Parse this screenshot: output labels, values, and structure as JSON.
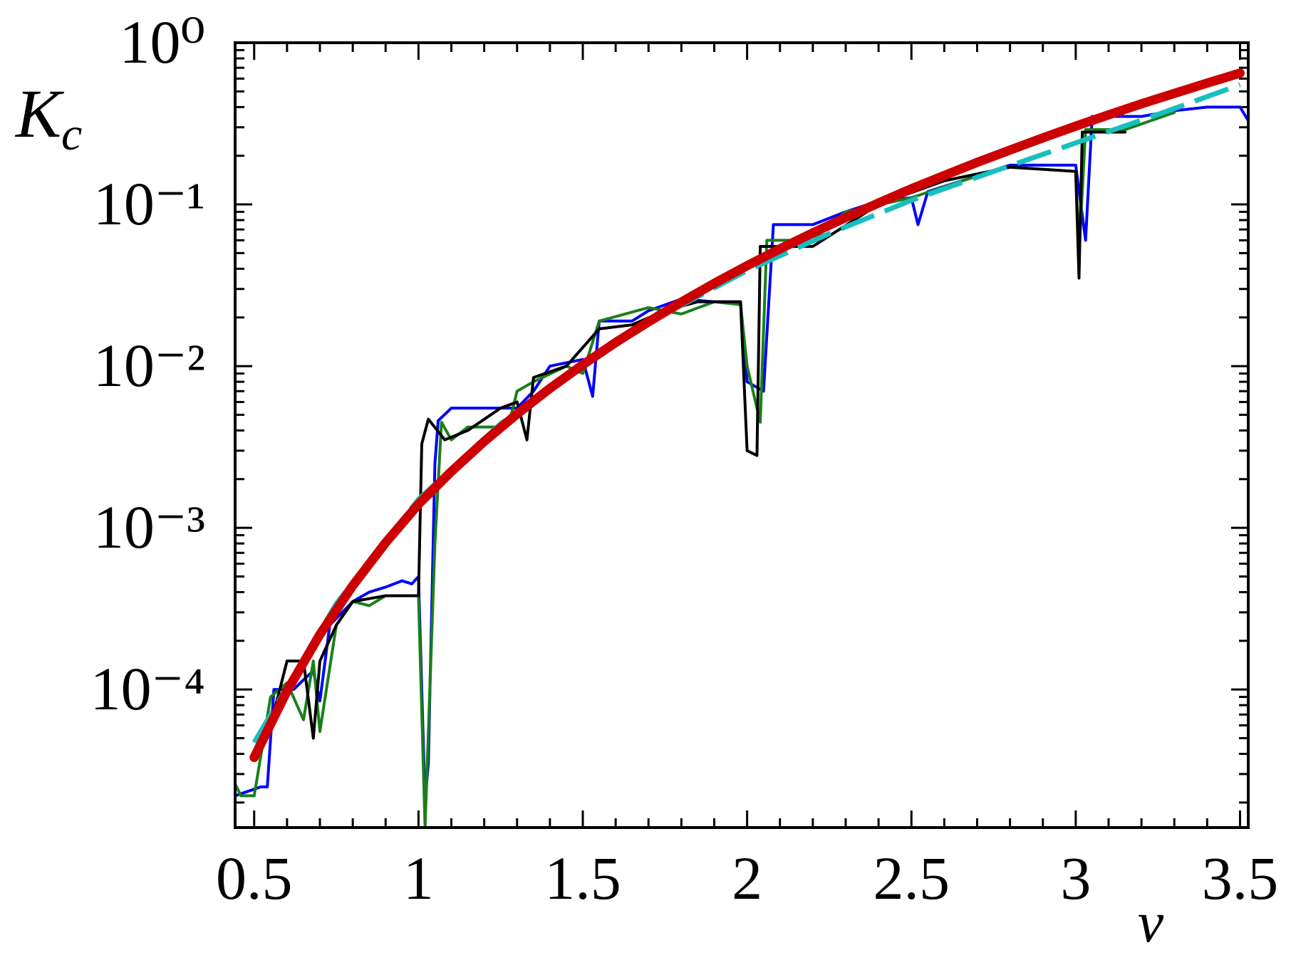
{
  "chart_data": {
    "type": "line",
    "xlabel": "ν",
    "ylabel": "Kc",
    "xlim": [
      0.442,
      3.525
    ],
    "xticks": [
      0.5,
      1,
      1.5,
      2,
      2.5,
      3,
      3.5
    ],
    "xminorticks": [
      0.6,
      0.7,
      0.8,
      0.9,
      1.1,
      1.2,
      1.3,
      1.4,
      1.6,
      1.7,
      1.8,
      1.9,
      2.1,
      2.2,
      2.3,
      2.4,
      2.6,
      2.7,
      2.8,
      2.9,
      3.1,
      3.2,
      3.3,
      3.4
    ],
    "ylim": [
      1.4e-05,
      1
    ],
    "yscale": "log",
    "yticks": [
      {
        "value": 0.0001,
        "label": "10⁻⁴"
      },
      {
        "value": 0.001,
        "label": "10⁻³"
      },
      {
        "value": 0.01,
        "label": "10⁻²"
      },
      {
        "value": 0.1,
        "label": "10⁻¹"
      },
      {
        "value": 1,
        "label": "10⁰"
      }
    ],
    "yminorticks": [
      2e-05,
      3e-05,
      4e-05,
      5e-05,
      6e-05,
      7e-05,
      8e-05,
      9e-05,
      0.0002,
      0.0003,
      0.0004,
      0.0005,
      0.0006,
      0.0007,
      0.0008,
      0.0009,
      0.002,
      0.003,
      0.004,
      0.005,
      0.006,
      0.007,
      0.008,
      0.009,
      0.02,
      0.03,
      0.04,
      0.05,
      0.06,
      0.07,
      0.08,
      0.09,
      0.2,
      0.3,
      0.4,
      0.5,
      0.6,
      0.7,
      0.8,
      0.9
    ],
    "series": [
      {
        "color": "#0000ff",
        "linewidth": 4,
        "dashed": false,
        "x": [
          0.442,
          0.52,
          0.54,
          0.56,
          0.62,
          0.66,
          0.68,
          0.7,
          0.73,
          0.8,
          0.85,
          0.9,
          0.95,
          0.98,
          1.0,
          1.02,
          1.03,
          1.05,
          1.06,
          1.1,
          1.3,
          1.35,
          1.4,
          1.5,
          1.53,
          1.55,
          1.65,
          1.7,
          1.8,
          1.9,
          1.98,
          2.0,
          2.05,
          2.08,
          2.2,
          2.3,
          2.4,
          2.5,
          2.52,
          2.55,
          2.7,
          2.8,
          3.0,
          3.03,
          3.05,
          3.2,
          3.3,
          3.4,
          3.5,
          3.525
        ],
        "values": [
          2.2e-05,
          2.5e-05,
          2.5e-05,
          0.0001,
          0.0001,
          0.00012,
          0.00013,
          8.5e-05,
          0.00025,
          0.00035,
          0.0004,
          0.00043,
          0.00047,
          0.00045,
          0.0005,
          2e-05,
          3.5e-05,
          0.0025,
          0.0046,
          0.0055,
          0.0055,
          0.007,
          0.01,
          0.011,
          0.0065,
          0.019,
          0.019,
          0.022,
          0.026,
          0.025,
          0.025,
          0.008,
          0.007,
          0.075,
          0.075,
          0.09,
          0.105,
          0.11,
          0.075,
          0.12,
          0.15,
          0.175,
          0.175,
          0.06,
          0.35,
          0.35,
          0.38,
          0.4,
          0.4,
          0.33
        ]
      },
      {
        "color": "#1a7f1a",
        "linewidth": 4,
        "dashed": false,
        "x": [
          0.442,
          0.46,
          0.5,
          0.55,
          0.6,
          0.65,
          0.68,
          0.7,
          0.75,
          0.8,
          0.85,
          0.9,
          0.95,
          1.0,
          1.02,
          1.05,
          1.07,
          1.1,
          1.15,
          1.25,
          1.28,
          1.3,
          1.35,
          1.45,
          1.5,
          1.55,
          1.7,
          1.8,
          1.9,
          1.98,
          2.0,
          2.04,
          2.06,
          2.2,
          2.3,
          2.5,
          2.7,
          2.8,
          3.0,
          3.01,
          3.03,
          3.15,
          3.3
        ],
        "values": [
          2.6e-05,
          2.2e-05,
          2.2e-05,
          9e-05,
          0.00011,
          6.5e-05,
          0.00015,
          5.5e-05,
          0.00025,
          0.00035,
          0.00033,
          0.00038,
          0.00038,
          0.00038,
          1.4e-05,
          0.0008,
          0.0045,
          0.0035,
          0.0042,
          0.0042,
          0.0048,
          0.007,
          0.008,
          0.01,
          0.009,
          0.019,
          0.023,
          0.021,
          0.025,
          0.024,
          0.01,
          0.0045,
          0.06,
          0.06,
          0.09,
          0.11,
          0.15,
          0.17,
          0.16,
          0.05,
          0.29,
          0.29,
          0.37
        ]
      },
      {
        "color": "#000000",
        "linewidth": 4,
        "dashed": false,
        "x": [
          0.55,
          0.6,
          0.65,
          0.68,
          0.7,
          0.75,
          0.8,
          0.9,
          1.0,
          1.01,
          1.03,
          1.08,
          1.15,
          1.25,
          1.3,
          1.33,
          1.35,
          1.45,
          1.55,
          1.65,
          1.75,
          1.85,
          1.98,
          2.0,
          2.03,
          2.04,
          2.2,
          2.4,
          2.6,
          2.8,
          3.0,
          3.01,
          3.02,
          3.15
        ],
        "values": [
          6e-05,
          0.00015,
          0.00015,
          5e-05,
          0.00015,
          0.00025,
          0.00035,
          0.00038,
          0.00038,
          0.0033,
          0.0047,
          0.0035,
          0.004,
          0.0055,
          0.006,
          0.0035,
          0.0085,
          0.01,
          0.017,
          0.018,
          0.022,
          0.025,
          0.025,
          0.003,
          0.0028,
          0.055,
          0.055,
          0.1,
          0.14,
          0.17,
          0.16,
          0.035,
          0.28,
          0.28
        ]
      },
      {
        "color": "#17bfbf",
        "linewidth": 7,
        "dashed": true,
        "x": [
          0.5,
          0.75,
          1.0,
          1.25,
          1.5,
          1.75,
          2.0,
          2.25,
          2.5,
          2.75,
          3.0,
          3.25,
          3.5
        ],
        "values": [
          4.7e-05,
          0.00034,
          0.0015,
          0.0044,
          0.0102,
          0.021,
          0.039,
          0.066,
          0.106,
          0.16,
          0.24,
          0.36,
          0.55
        ]
      },
      {
        "color": "#cc0000",
        "linewidth": 13,
        "dashed": false,
        "x": [
          0.5,
          0.6,
          0.7,
          0.8,
          0.9,
          1.0,
          1.1,
          1.2,
          1.3,
          1.4,
          1.5,
          1.6,
          1.7,
          1.8,
          1.9,
          2.0,
          2.1,
          2.2,
          2.3,
          2.4,
          2.5,
          2.6,
          2.7,
          2.8,
          2.9,
          3.0,
          3.1,
          3.2,
          3.3,
          3.4,
          3.5
        ],
        "values": [
          3.8e-05,
          9.8e-05,
          0.000219,
          0.000439,
          0.000809,
          0.0014,
          0.00223,
          0.00342,
          0.00506,
          0.00728,
          0.0102,
          0.014,
          0.0188,
          0.0249,
          0.0325,
          0.0418,
          0.0531,
          0.0667,
          0.0829,
          0.102,
          0.125,
          0.151,
          0.182,
          0.217,
          0.258,
          0.305,
          0.358,
          0.419,
          0.486,
          0.563,
          0.649
        ]
      }
    ]
  }
}
